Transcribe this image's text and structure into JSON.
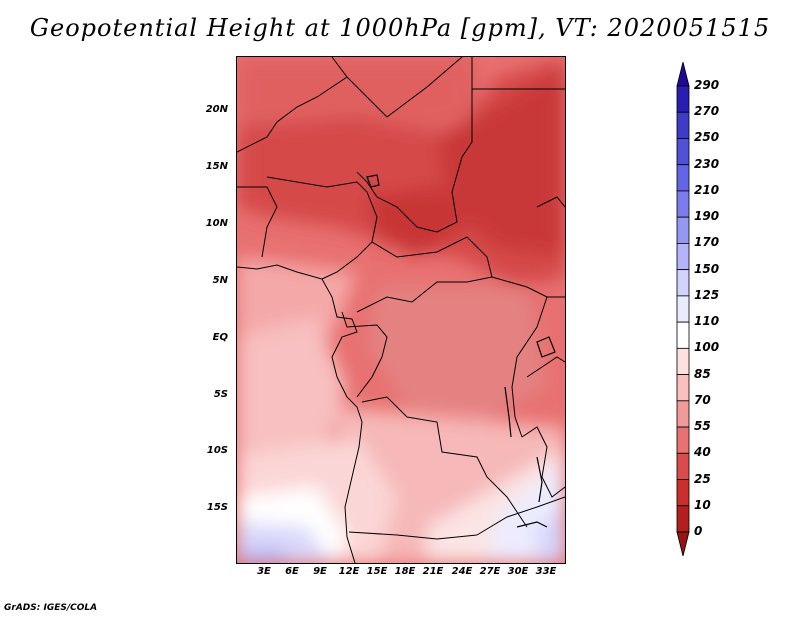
{
  "title": "Geopotential Height at 1000hPa [gpm], VT: 2020051515",
  "credit": "GrADS: IGES/COLA",
  "map": {
    "lat_labels": [
      "20N",
      "15N",
      "10N",
      "5N",
      "EQ",
      "5S",
      "10S",
      "15S"
    ],
    "lon_labels": [
      "3E",
      "6E",
      "9E",
      "12E",
      "15E",
      "18E",
      "21E",
      "24E",
      "27E",
      "30E",
      "33E"
    ],
    "lon_range": [
      0,
      35
    ],
    "lat_range": [
      -19.5,
      24.5
    ]
  },
  "colorbar": {
    "levels": [
      "290",
      "270",
      "250",
      "230",
      "210",
      "190",
      "170",
      "150",
      "125",
      "110",
      "100",
      "85",
      "70",
      "55",
      "40",
      "25",
      "10",
      "0"
    ],
    "colors": [
      "#1e0a96",
      "#281eb4",
      "#3c3cc8",
      "#5050d8",
      "#6464e6",
      "#7c7cf0",
      "#9696f5",
      "#b4b4fa",
      "#d2d2fc",
      "#ebebfe",
      "#ffffff",
      "#fde0e0",
      "#f9c0c0",
      "#f29999",
      "#e87272",
      "#db4b4b",
      "#cc2e2e",
      "#b41e1e",
      "#961414"
    ]
  }
}
